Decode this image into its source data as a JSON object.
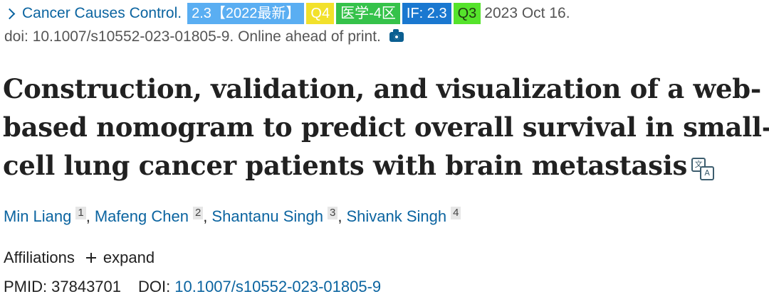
{
  "journal": {
    "name": "Cancer Causes Control.",
    "badges": [
      "2.3【2022最新】",
      "Q4",
      "医学-4区",
      "IF: 2.3",
      "Q3"
    ],
    "date": "2023 Oct 16."
  },
  "doi_line": "doi: 10.1007/s10552-023-01805-9. Online ahead of print.",
  "title_lines": [
    "Construction, validation, and visualization of a web-",
    "based nomogram to predict overall survival in small-",
    "cell lung cancer patients with brain metastasis"
  ],
  "translate_icon": {
    "glyph1": "文",
    "glyph2": "A"
  },
  "authors": [
    {
      "name": "Min Liang",
      "aff": "1"
    },
    {
      "name": "Mafeng Chen",
      "aff": "2"
    },
    {
      "name": "Shantanu Singh",
      "aff": "3"
    },
    {
      "name": "Shivank Singh",
      "aff": "4"
    }
  ],
  "comma": ",",
  "affiliations": {
    "label": "Affiliations",
    "toggle": "expand"
  },
  "ids": {
    "pmid_label": "PMID:",
    "pmid": "37843701",
    "doi_label": "DOI:",
    "doi": "10.1007/s10552-023-01805-9"
  },
  "colors": {
    "link": "#0b64a0",
    "badge_blue": "#5aaef2",
    "badge_yellow": "#f2e12b",
    "badge_green": "#35c24a",
    "badge_dark_blue": "#1a78d0",
    "badge_lime": "#55e32b"
  }
}
